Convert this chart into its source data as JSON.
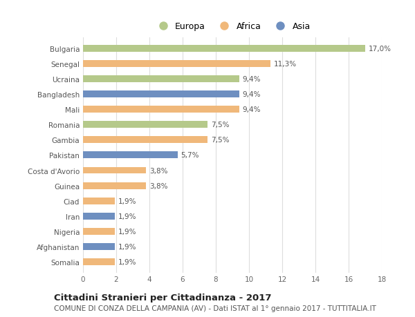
{
  "categories": [
    "Bulgaria",
    "Senegal",
    "Ucraina",
    "Bangladesh",
    "Mali",
    "Romania",
    "Gambia",
    "Pakistan",
    "Costa d'Avorio",
    "Guinea",
    "Ciad",
    "Iran",
    "Nigeria",
    "Afghanistan",
    "Somalia"
  ],
  "values": [
    17.0,
    11.3,
    9.4,
    9.4,
    9.4,
    7.5,
    7.5,
    5.7,
    3.8,
    3.8,
    1.9,
    1.9,
    1.9,
    1.9,
    1.9
  ],
  "labels": [
    "17,0%",
    "11,3%",
    "9,4%",
    "9,4%",
    "9,4%",
    "7,5%",
    "7,5%",
    "5,7%",
    "3,8%",
    "3,8%",
    "1,9%",
    "1,9%",
    "1,9%",
    "1,9%",
    "1,9%"
  ],
  "continents": [
    "Europa",
    "Africa",
    "Europa",
    "Asia",
    "Africa",
    "Europa",
    "Africa",
    "Asia",
    "Africa",
    "Africa",
    "Africa",
    "Asia",
    "Africa",
    "Asia",
    "Africa"
  ],
  "colors": {
    "Europa": "#b5c98a",
    "Africa": "#f0b87a",
    "Asia": "#6e8fc0"
  },
  "xlim": [
    0,
    18
  ],
  "xticks": [
    0,
    2,
    4,
    6,
    8,
    10,
    12,
    14,
    16,
    18
  ],
  "title": "Cittadini Stranieri per Cittadinanza - 2017",
  "subtitle": "COMUNE DI CONZA DELLA CAMPANIA (AV) - Dati ISTAT al 1° gennaio 2017 - TUTTITALIA.IT",
  "background_color": "#ffffff",
  "grid_color": "#dddddd",
  "bar_height": 0.45,
  "title_fontsize": 9.5,
  "subtitle_fontsize": 7.5,
  "label_fontsize": 7.5,
  "tick_fontsize": 7.5,
  "legend_fontsize": 9.0
}
